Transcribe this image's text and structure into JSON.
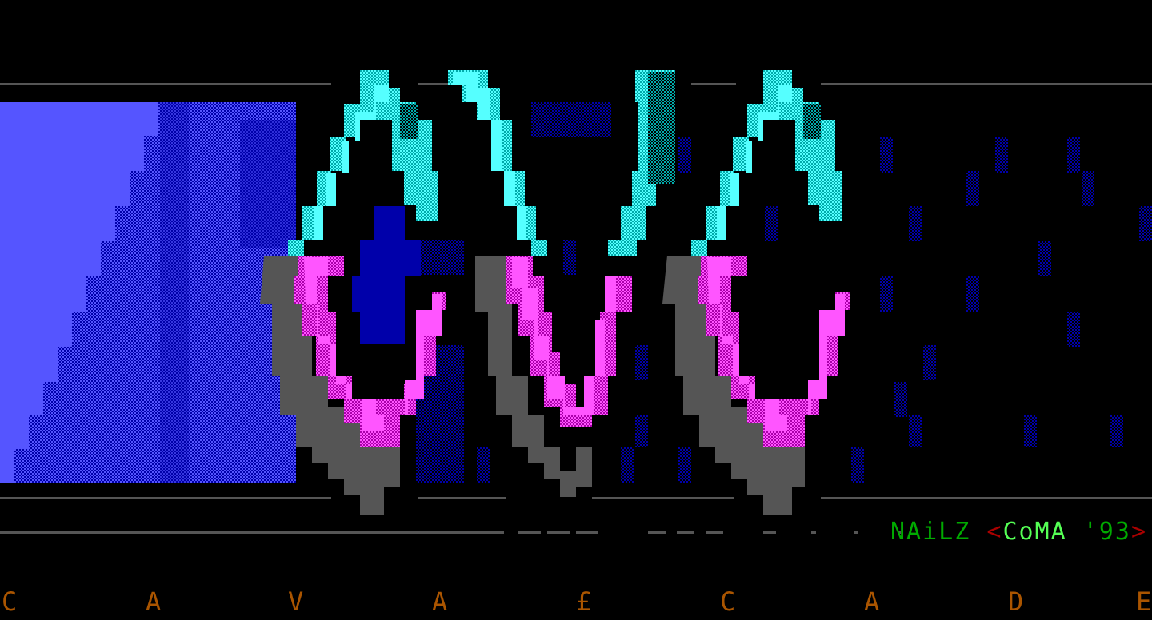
{
  "artwork": {
    "logo_letters": [
      "C",
      "V",
      "C"
    ],
    "palette": {
      "background": "#000000",
      "blue_bright": "#5555ff",
      "blue_dark": "#0000aa",
      "cyan_bright": "#55ffff",
      "cyan_dark": "#00aaaa",
      "magenta_bright": "#ff55ff",
      "magenta_dark": "#aa00aa",
      "gray": "#555555",
      "line": "#555555"
    }
  },
  "credit": {
    "author": "NAiLZ",
    "bracket_open": "<",
    "group": "CoMA",
    "year": " '93",
    "bracket_close": ">",
    "colors": {
      "author": "#00aa00",
      "group": "#55ff55",
      "bracket": "#aa0000"
    }
  },
  "title_spaced": [
    "C",
    "A",
    "V",
    "A",
    "£",
    "C",
    "A",
    "D",
    "E"
  ],
  "title_color": "#aa5500"
}
